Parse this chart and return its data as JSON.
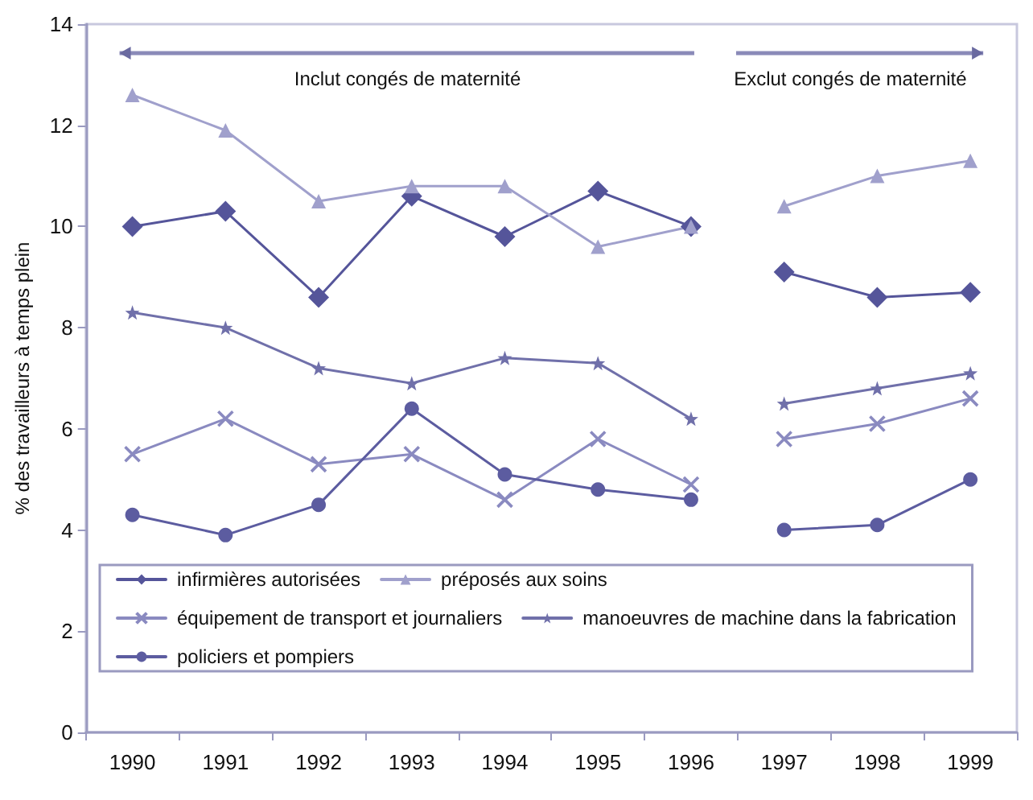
{
  "chart_data": {
    "type": "line",
    "ylabel": "% des travailleurs à temps plein",
    "categories": [
      "1990",
      "1991",
      "1992",
      "1993",
      "1994",
      "1995",
      "1996",
      "1997",
      "1998",
      "1999"
    ],
    "ylim": [
      0,
      14
    ],
    "yticks": [
      0,
      2,
      4,
      6,
      8,
      10,
      12,
      14
    ],
    "grid": false,
    "legend": "bottom",
    "annotations": [
      "Inclut congés de maternité",
      "Exclut congés de maternité"
    ],
    "series": [
      {
        "name": "infirmières autorisées",
        "color": "#55559a",
        "marker": "diamond",
        "values": [
          10.0,
          10.3,
          8.6,
          10.6,
          9.8,
          10.7,
          10.0,
          null,
          null,
          null
        ]
      },
      {
        "name": "préposés aux soins",
        "color": "#a0a0cc",
        "marker": "triangle",
        "values": [
          12.6,
          11.9,
          10.5,
          10.8,
          10.8,
          9.6,
          10.0,
          null,
          null,
          null
        ]
      },
      {
        "name": "équipement de transport et journaliers",
        "color": "#8a8ac0",
        "marker": "cross",
        "values": [
          5.5,
          6.2,
          5.3,
          5.5,
          4.6,
          5.8,
          4.9,
          null,
          null,
          null
        ]
      },
      {
        "name": "manoeuvres de machine dans la fabrication",
        "color": "#7070aa",
        "marker": "star",
        "values": [
          8.3,
          8.0,
          7.2,
          6.9,
          7.4,
          7.3,
          6.2,
          null,
          null,
          null
        ]
      },
      {
        "name": "policiers et pompiers",
        "color": "#5c5ca0",
        "marker": "circle",
        "values": [
          4.3,
          3.9,
          4.5,
          6.4,
          5.1,
          4.8,
          4.6,
          null,
          null,
          null
        ]
      },
      {
        "color": "#55559a",
        "marker": "diamond",
        "values": [
          null,
          null,
          null,
          null,
          null,
          null,
          null,
          9.1,
          8.6,
          8.7
        ]
      },
      {
        "color": "#a0a0cc",
        "marker": "triangle",
        "values": [
          null,
          null,
          null,
          null,
          null,
          null,
          null,
          10.4,
          11.0,
          11.3
        ]
      },
      {
        "color": "#8a8ac0",
        "marker": "cross",
        "values": [
          null,
          null,
          null,
          null,
          null,
          null,
          null,
          5.8,
          6.1,
          6.6
        ]
      },
      {
        "color": "#7070aa",
        "marker": "star",
        "values": [
          null,
          null,
          null,
          null,
          null,
          null,
          null,
          6.5,
          6.8,
          7.1
        ]
      },
      {
        "color": "#5c5ca0",
        "marker": "circle",
        "values": [
          null,
          null,
          null,
          null,
          null,
          null,
          null,
          4.0,
          4.1,
          5.0
        ]
      }
    ]
  }
}
